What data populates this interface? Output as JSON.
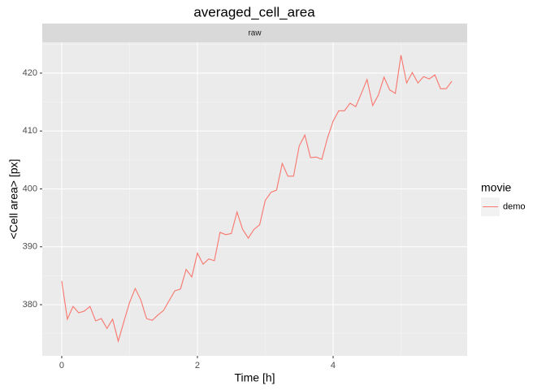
{
  "chart_data": {
    "type": "line",
    "title": "averaged_cell_area",
    "strip_label": "raw",
    "x_label": "Time [h]",
    "y_label": "<Cell area> [px]",
    "legend_title": "movie",
    "legend_position": "right",
    "grid": true,
    "x": [
      0,
      0.0833,
      0.1667,
      0.25,
      0.3333,
      0.4167,
      0.5,
      0.5833,
      0.6667,
      0.75,
      0.8333,
      0.9167,
      1,
      1.0833,
      1.1667,
      1.25,
      1.3333,
      1.4167,
      1.5,
      1.5833,
      1.6667,
      1.75,
      1.8333,
      1.9167,
      2,
      2.0833,
      2.1667,
      2.25,
      2.3333,
      2.4167,
      2.5,
      2.5833,
      2.6667,
      2.75,
      2.8333,
      2.9167,
      3,
      3.0833,
      3.1667,
      3.25,
      3.3333,
      3.4167,
      3.5,
      3.5833,
      3.6667,
      3.75,
      3.8333,
      3.9167,
      4,
      4.0833,
      4.1667,
      4.25,
      4.3333,
      4.4167,
      4.5,
      4.5833,
      4.6667,
      4.75,
      4.8333,
      4.9167,
      5,
      5.0833,
      5.1667,
      5.25,
      5.3333,
      5.4167,
      5.5,
      5.5833,
      5.6667,
      5.75
    ],
    "series": [
      {
        "name": "demo",
        "color": "#f8766d",
        "values": [
          384.1,
          377.5,
          379.7,
          378.6,
          378.9,
          379.7,
          377.2,
          377.6,
          375.9,
          377.5,
          373.7,
          377.1,
          380.4,
          382.8,
          380.8,
          377.6,
          377.3,
          378.2,
          379.0,
          380.7,
          382.4,
          382.7,
          386.1,
          384.8,
          388.9,
          387.0,
          387.9,
          387.6,
          392.5,
          392.1,
          392.3,
          396.0,
          393.0,
          391.5,
          393.0,
          393.8,
          398.0,
          399.4,
          399.8,
          404.4,
          402.2,
          402.2,
          407.4,
          409.3,
          405.4,
          405.5,
          405.1,
          408.8,
          411.7,
          413.5,
          413.5,
          414.8,
          414.2,
          416.5,
          418.9,
          414.4,
          416.2,
          419.3,
          417.1,
          416.5,
          423.1,
          418.3,
          420.1,
          418.3,
          419.4,
          419.0,
          419.7,
          417.3,
          417.3,
          418.6
        ]
      }
    ],
    "xlim": [
      -0.287,
      5.976
    ],
    "ylim": [
      371.16,
      425.33
    ],
    "xticks": [
      0,
      2,
      4
    ],
    "yticks": [
      380,
      390,
      400,
      410,
      420
    ]
  }
}
